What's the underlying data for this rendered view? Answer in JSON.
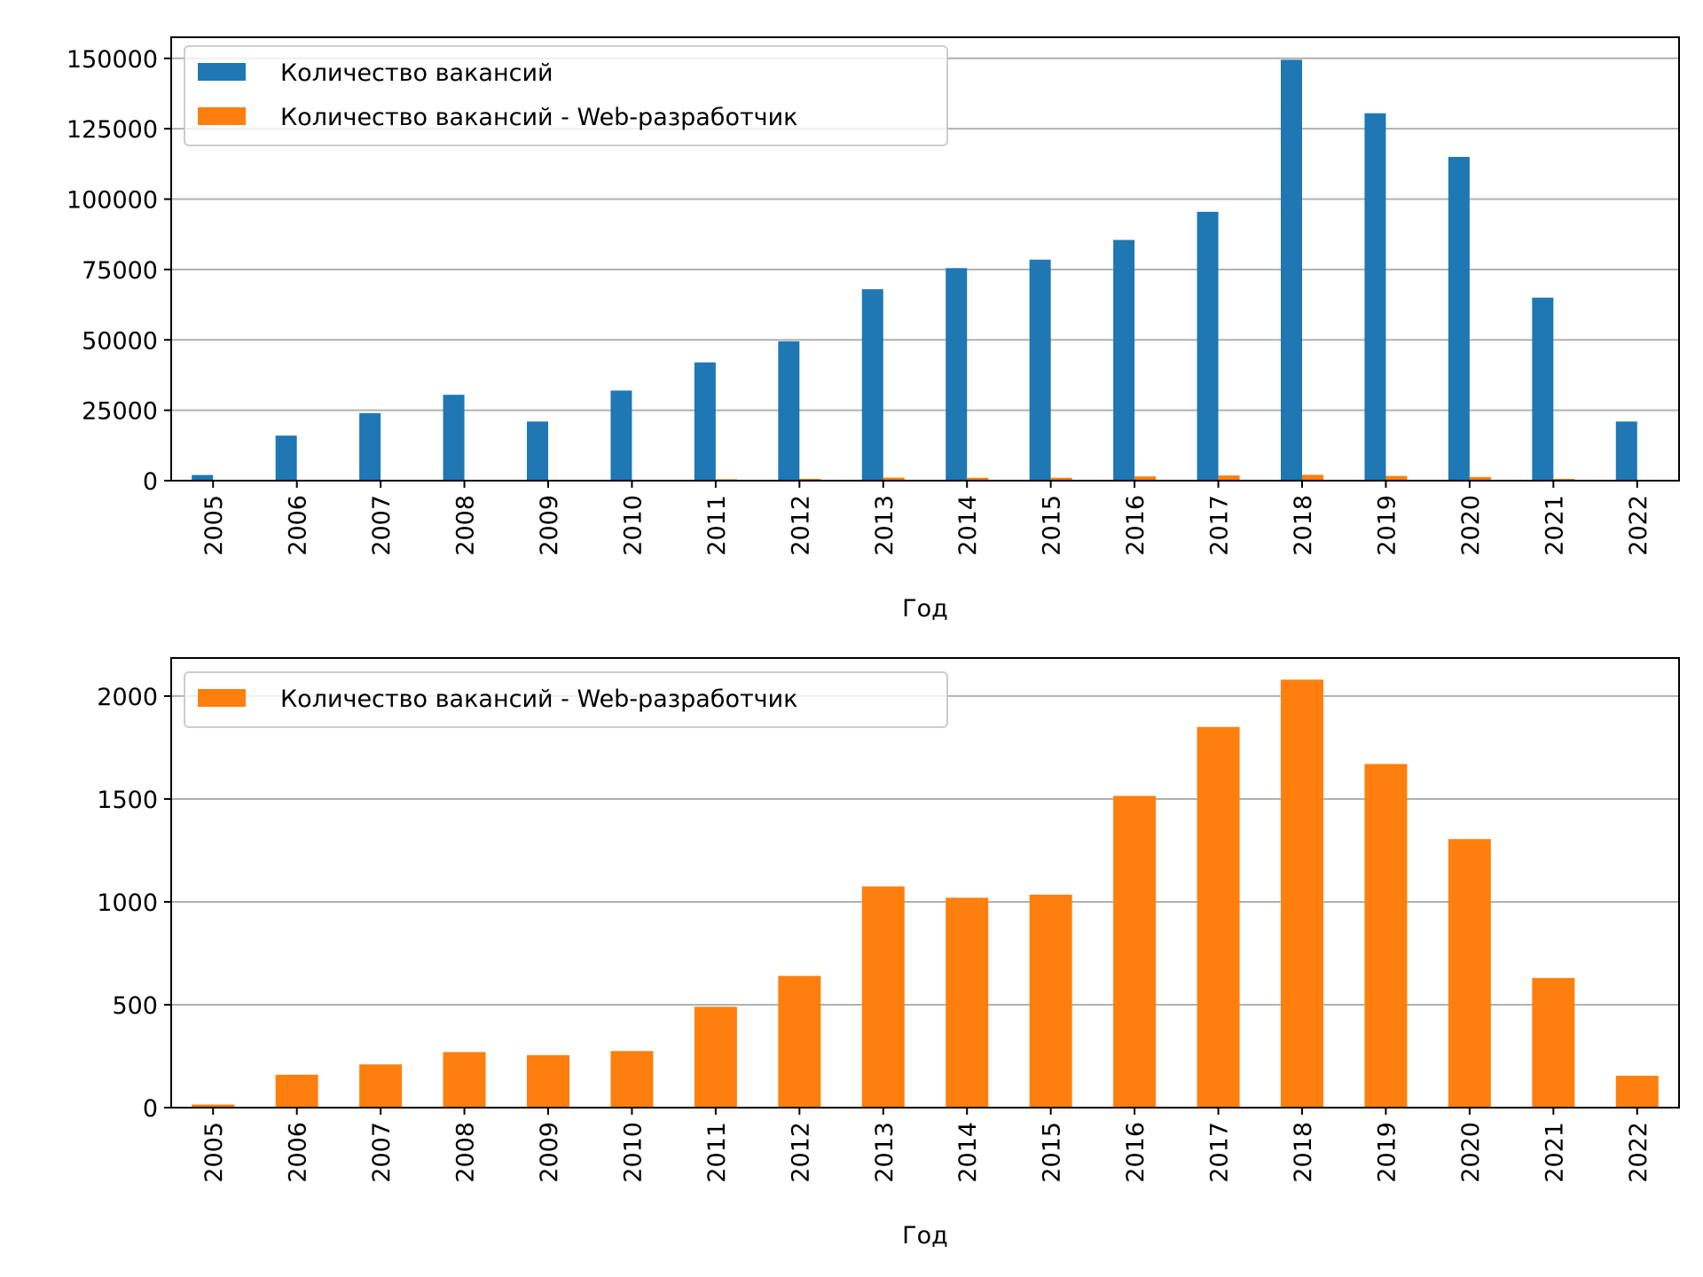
{
  "chart_data": [
    {
      "type": "bar",
      "xlabel": "Год",
      "ylabel": "",
      "categories": [
        "2005",
        "2006",
        "2007",
        "2008",
        "2009",
        "2010",
        "2011",
        "2012",
        "2013",
        "2014",
        "2015",
        "2016",
        "2017",
        "2018",
        "2019",
        "2020",
        "2021",
        "2022"
      ],
      "ylim": [
        0,
        157500
      ],
      "yticks": [
        0,
        25000,
        50000,
        75000,
        100000,
        125000,
        150000
      ],
      "ytick_labels": [
        "0",
        "25000",
        "50000",
        "75000",
        "100000",
        "125000",
        "150000"
      ],
      "grid": "y",
      "legend_position": "top-left",
      "series": [
        {
          "name": "Количество вакансий",
          "color": "#1f77b4",
          "values": [
            2000,
            16000,
            24000,
            30500,
            21000,
            32000,
            42000,
            49500,
            68000,
            75500,
            78500,
            85500,
            95500,
            149500,
            130500,
            115000,
            65000,
            21000
          ]
        },
        {
          "name": "Количество вакансий - Web-разработчик",
          "color": "#ff7f0e",
          "values": [
            15,
            160,
            210,
            270,
            255,
            275,
            490,
            640,
            1075,
            1020,
            1035,
            1515,
            1850,
            2080,
            1670,
            1305,
            630,
            155
          ]
        }
      ]
    },
    {
      "type": "bar",
      "xlabel": "Год",
      "ylabel": "",
      "categories": [
        "2005",
        "2006",
        "2007",
        "2008",
        "2009",
        "2010",
        "2011",
        "2012",
        "2013",
        "2014",
        "2015",
        "2016",
        "2017",
        "2018",
        "2019",
        "2020",
        "2021",
        "2022"
      ],
      "ylim": [
        0,
        2185
      ],
      "yticks": [
        0,
        500,
        1000,
        1500,
        2000
      ],
      "ytick_labels": [
        "0",
        "500",
        "1000",
        "1500",
        "2000"
      ],
      "grid": "y",
      "legend_position": "top-left",
      "series": [
        {
          "name": "Количество вакансий - Web-разработчик",
          "color": "#ff7f0e",
          "values": [
            15,
            160,
            210,
            270,
            255,
            275,
            490,
            640,
            1075,
            1020,
            1035,
            1515,
            1850,
            2080,
            1670,
            1305,
            630,
            155
          ]
        }
      ]
    }
  ]
}
